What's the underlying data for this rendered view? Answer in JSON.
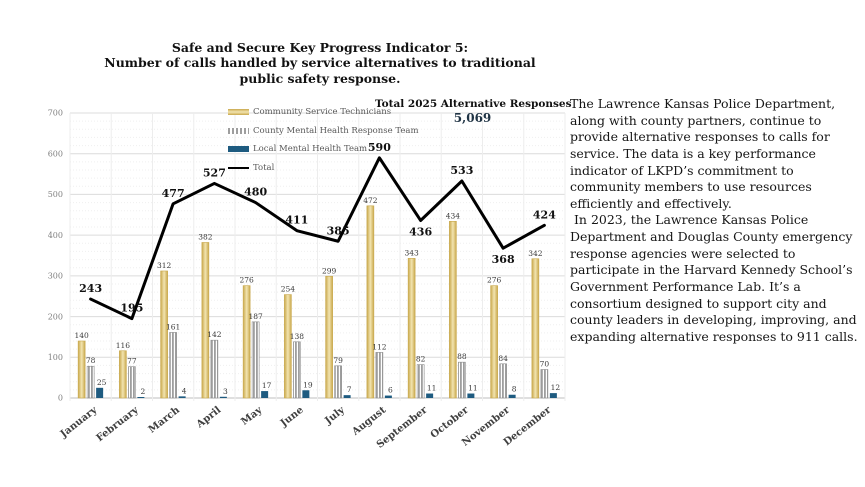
{
  "title": {
    "line1": "Safe and Secure Key Progress Indicator 5:",
    "line2": "Number of calls handled by service alternatives to traditional",
    "line3": "public safety response."
  },
  "total_annotation": {
    "label": "Total 2025 Alternative Responses",
    "value": "5,069"
  },
  "chart_data": {
    "type": "bar",
    "title": "",
    "xlabel": "",
    "ylabel": "",
    "ylim": [
      0,
      700
    ],
    "ytick_interval": 100,
    "minor_grid_interval": 20,
    "grid": true,
    "legend_position": "top-left-inside",
    "categories": [
      "January",
      "February",
      "March",
      "April",
      "May",
      "June",
      "July",
      "August",
      "September",
      "October",
      "November",
      "December"
    ],
    "series": [
      {
        "name": "Community Service Technicians",
        "kind": "bar",
        "color": "#c9a84c",
        "color_light": "#f2e4b0",
        "style": "gradient",
        "values": [
          140,
          116,
          312,
          382,
          276,
          254,
          299,
          472,
          343,
          434,
          276,
          342
        ]
      },
      {
        "name": "County Mental Health Response Team",
        "kind": "bar",
        "color": "#9e9e9e",
        "style": "vertical-stripes",
        "values": [
          78,
          77,
          161,
          142,
          187,
          138,
          79,
          112,
          82,
          88,
          84,
          70
        ]
      },
      {
        "name": "Local Mental Health Team",
        "kind": "bar",
        "color": "#1e5b80",
        "style": "solid",
        "values": [
          25,
          2,
          4,
          3,
          17,
          19,
          7,
          6,
          11,
          11,
          8,
          12
        ]
      },
      {
        "name": "Total",
        "kind": "line",
        "color": "#000000",
        "values": [
          243,
          195,
          477,
          527,
          480,
          411,
          385,
          590,
          436,
          533,
          368,
          424
        ]
      }
    ]
  },
  "side_text": {
    "para1": "The Lawrence Kansas Police Department, along with county partners, continue to provide alternative responses to calls for service. The data is a key performance indicator of LKPD’s commitment to community members to use resources efficiently and effectively.",
    "para2": " In 2023, the Lawrence Kansas Police Department and Douglas County emergency response agencies were selected to participate in the Harvard Kennedy School’s Government Performance Lab. It’s a consortium designed to support city and county leaders in developing, improving, and expanding alternative responses to 911 calls."
  }
}
